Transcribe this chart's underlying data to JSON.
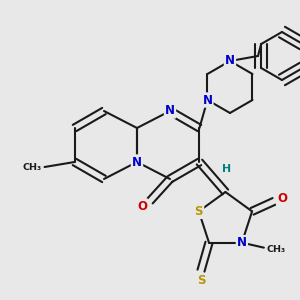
{
  "bg_color": "#e8e8e8",
  "bond_color": "#1a1a1a",
  "bw": 1.5,
  "doff": 0.012,
  "atom_colors": {
    "N": "#0000cc",
    "O": "#cc0000",
    "S": "#b8960a",
    "H": "#008080",
    "C": "#1a1a1a"
  },
  "fs": 8.5,
  "fs_sm": 6.8
}
